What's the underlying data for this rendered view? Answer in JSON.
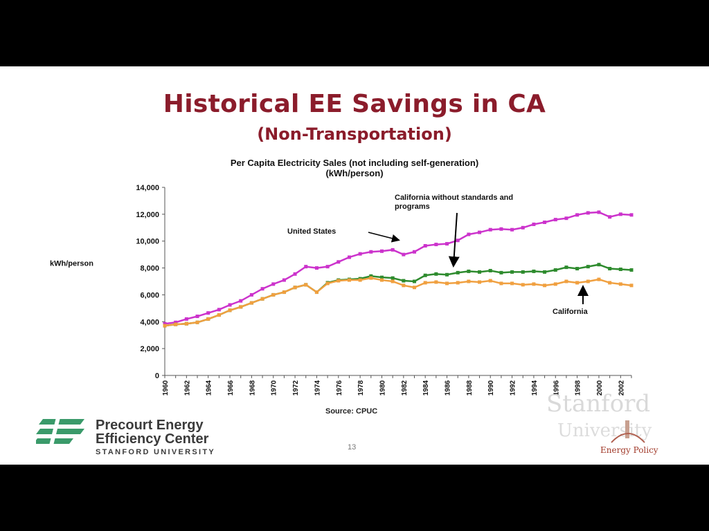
{
  "slide": {
    "title": "Historical EE Savings in CA",
    "subtitle": "(Non-Transportation)",
    "source": "Source: CPUC",
    "page_number": "13",
    "logo": {
      "line1": "Precourt Energy",
      "line2": "Efficiency Center",
      "line3": "STANFORD UNIVERSITY"
    },
    "watermark": {
      "word1": "Stanford",
      "word2": "University",
      "word3": "Energy Policy"
    }
  },
  "chart_data": {
    "type": "line",
    "title": "Per Capita Electricity Sales (not including self-generation)",
    "subtitle": "(kWh/person)",
    "ylabel": "kWh/person",
    "ylim": [
      0,
      14000
    ],
    "yticks": [
      0,
      2000,
      4000,
      6000,
      8000,
      10000,
      12000,
      14000
    ],
    "ytick_labels": [
      "0",
      "2,000",
      "4,000",
      "6,000",
      "8,000",
      "10,000",
      "12,000",
      "14,000"
    ],
    "x": [
      1960,
      1961,
      1962,
      1963,
      1964,
      1965,
      1966,
      1967,
      1968,
      1969,
      1970,
      1971,
      1972,
      1973,
      1974,
      1975,
      1976,
      1977,
      1978,
      1979,
      1980,
      1981,
      1982,
      1983,
      1984,
      1985,
      1986,
      1987,
      1988,
      1989,
      1990,
      1991,
      1992,
      1993,
      1994,
      1995,
      1996,
      1997,
      1998,
      1999,
      2000,
      2001,
      2002,
      2003
    ],
    "xtick_labels": [
      "1960",
      "1962",
      "1964",
      "1966",
      "1968",
      "1970",
      "1972",
      "1974",
      "1976",
      "1978",
      "1980",
      "1982",
      "1984",
      "1986",
      "1988",
      "1990",
      "1992",
      "1994",
      "1996",
      "1998",
      "2000",
      "2002"
    ],
    "grid": false,
    "series": [
      {
        "name": "United States",
        "color": "#cc33cc",
        "values": [
          3850,
          3950,
          4200,
          4400,
          4650,
          4900,
          5250,
          5550,
          6000,
          6450,
          6800,
          7100,
          7550,
          8100,
          8000,
          8100,
          8450,
          8800,
          9050,
          9200,
          9250,
          9350,
          9000,
          9200,
          9650,
          9750,
          9800,
          10050,
          10500,
          10650,
          10850,
          10900,
          10850,
          11000,
          11250,
          11400,
          11600,
          11700,
          11950,
          12100,
          12150,
          11800,
          12000,
          11950
        ]
      },
      {
        "name": "California without standards and programs",
        "color": "#2e8b2e",
        "values": [
          3700,
          3800,
          3850,
          3950,
          4200,
          4500,
          4850,
          5100,
          5400,
          5700,
          6000,
          6200,
          6550,
          6750,
          6200,
          6900,
          7100,
          7150,
          7200,
          7400,
          7300,
          7250,
          7050,
          7000,
          7450,
          7550,
          7500,
          7650,
          7750,
          7700,
          7800,
          7650,
          7700,
          7700,
          7750,
          7700,
          7850,
          8050,
          7950,
          8100,
          8250,
          7950,
          7900,
          7850
        ]
      },
      {
        "name": "California",
        "color": "#f0a040",
        "values": [
          3700,
          3800,
          3850,
          3950,
          4200,
          4500,
          4850,
          5100,
          5400,
          5700,
          6000,
          6200,
          6550,
          6750,
          6200,
          6850,
          7050,
          7100,
          7100,
          7250,
          7100,
          7000,
          6700,
          6550,
          6900,
          6950,
          6850,
          6900,
          7000,
          6950,
          7050,
          6850,
          6850,
          6750,
          6800,
          6700,
          6800,
          7000,
          6900,
          7000,
          7150,
          6900,
          6800,
          6700
        ]
      }
    ],
    "annotations": [
      {
        "text": "United States"
      },
      {
        "text": "California without standards and programs"
      },
      {
        "text": "California"
      }
    ]
  }
}
